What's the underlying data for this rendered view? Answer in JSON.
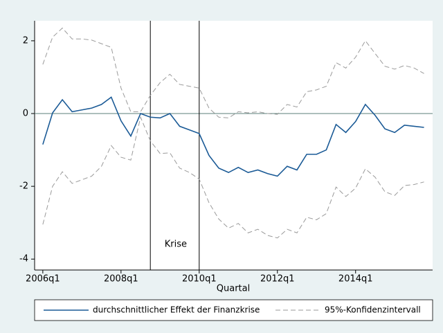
{
  "chart_data": {
    "type": "line",
    "x_label": "Quartal",
    "x": [
      2006,
      2006.25,
      2006.5,
      2006.75,
      2007,
      2007.25,
      2007.5,
      2007.75,
      2008,
      2008.25,
      2008.5,
      2008.75,
      2009,
      2009.25,
      2009.5,
      2009.75,
      2010,
      2010.25,
      2010.5,
      2010.75,
      2011,
      2011.25,
      2011.5,
      2011.75,
      2012,
      2012.25,
      2012.5,
      2012.75,
      2013,
      2013.25,
      2013.5,
      2013.75,
      2014,
      2014.25,
      2014.5,
      2014.75,
      2015,
      2015.25,
      2015.5,
      2015.75
    ],
    "series": [
      {
        "name": "durchschnittlicher Effekt der Finanzkrise",
        "color": "#1a5a96",
        "values": [
          -0.85,
          0.02,
          0.38,
          0.05,
          0.1,
          0.15,
          0.25,
          0.45,
          -0.2,
          -0.62,
          0.0,
          -0.1,
          -0.12,
          0.0,
          -0.35,
          -0.45,
          -0.55,
          -1.15,
          -1.5,
          -1.62,
          -1.48,
          -1.62,
          -1.55,
          -1.65,
          -1.72,
          -1.45,
          -1.55,
          -1.12,
          -1.12,
          -1.0,
          -0.3,
          -0.52,
          -0.22,
          0.25,
          -0.05,
          -0.42,
          -0.52,
          -0.32,
          -0.35,
          -0.38
        ]
      }
    ],
    "ci": {
      "name": "95%-Konfidenzintervall",
      "color": "#9a9a9a",
      "upper": [
        1.35,
        2.1,
        2.35,
        2.05,
        2.05,
        2.02,
        1.92,
        1.82,
        0.7,
        0.05,
        0.05,
        0.5,
        0.85,
        1.08,
        0.8,
        0.75,
        0.7,
        0.15,
        -0.1,
        -0.12,
        0.05,
        0.02,
        0.05,
        0.0,
        -0.02,
        0.25,
        0.18,
        0.6,
        0.65,
        0.75,
        1.4,
        1.25,
        1.55,
        2.0,
        1.65,
        1.3,
        1.22,
        1.32,
        1.25,
        1.1
      ],
      "lower": [
        -3.05,
        -2.0,
        -1.6,
        -1.92,
        -1.82,
        -1.72,
        -1.45,
        -0.88,
        -1.2,
        -1.28,
        -0.1,
        -0.75,
        -1.1,
        -1.08,
        -1.5,
        -1.62,
        -1.8,
        -2.45,
        -2.9,
        -3.15,
        -3.02,
        -3.28,
        -3.18,
        -3.35,
        -3.42,
        -3.18,
        -3.28,
        -2.85,
        -2.92,
        -2.75,
        -2.02,
        -2.28,
        -2.05,
        -1.52,
        -1.75,
        -2.15,
        -2.25,
        -1.98,
        -1.95,
        -1.88
      ]
    },
    "vlines": [
      2008.75,
      2010
    ],
    "hline": 0,
    "annotation": {
      "text": "Krise",
      "x": 2009.4,
      "y": -3.6
    },
    "xlim": [
      2005.79,
      2015.97
    ],
    "ylim": [
      -4.3,
      2.55
    ],
    "xticks": [
      {
        "value": 2006,
        "label": "2006q1"
      },
      {
        "value": 2008,
        "label": "2008q1"
      },
      {
        "value": 2010,
        "label": "2010q1"
      },
      {
        "value": 2012,
        "label": "2012q1"
      },
      {
        "value": 2014,
        "label": "2014q1"
      }
    ],
    "yticks": [
      -4,
      -2,
      0,
      2
    ],
    "legend": "bottom"
  }
}
